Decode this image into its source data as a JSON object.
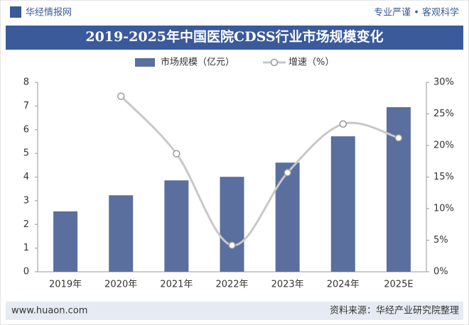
{
  "header": {
    "logo": "华经情报网",
    "slogan": "专业严谨 • 客观科学"
  },
  "chart_data": {
    "type": "bar-line",
    "title": "2019-2025年中国医院CDSS行业市场规模变化",
    "categories": [
      "2019年",
      "2020年",
      "2021年",
      "2022年",
      "2023年",
      "2024年",
      "2025E"
    ],
    "series": [
      {
        "name": "市场规模（亿元）",
        "type": "bar",
        "color": "#5b6f9e",
        "values": [
          2.55,
          3.23,
          3.86,
          4.01,
          4.61,
          5.72,
          6.95
        ]
      },
      {
        "name": "增速（%）",
        "type": "line",
        "axis": "y2",
        "color": "#c8c8c8",
        "values": [
          null,
          27.8,
          18.7,
          4.2,
          15.7,
          23.4,
          21.2
        ]
      }
    ],
    "ylim": [
      0,
      8
    ],
    "yticks": [
      0,
      1,
      2,
      3,
      4,
      5,
      6,
      7,
      8
    ],
    "y2lim": [
      0,
      30
    ],
    "y2ticks": [
      {
        "value": 0,
        "label": "0%"
      },
      {
        "value": 5,
        "label": "5%"
      },
      {
        "value": 10,
        "label": "10%"
      },
      {
        "value": 15,
        "label": "15%"
      },
      {
        "value": 20,
        "label": "20%"
      },
      {
        "value": 25,
        "label": "25%"
      },
      {
        "value": 30,
        "label": "30%"
      }
    ]
  },
  "footer": {
    "website": "www.huaon.com",
    "source": "资料来源：华经产业研究院整理"
  }
}
